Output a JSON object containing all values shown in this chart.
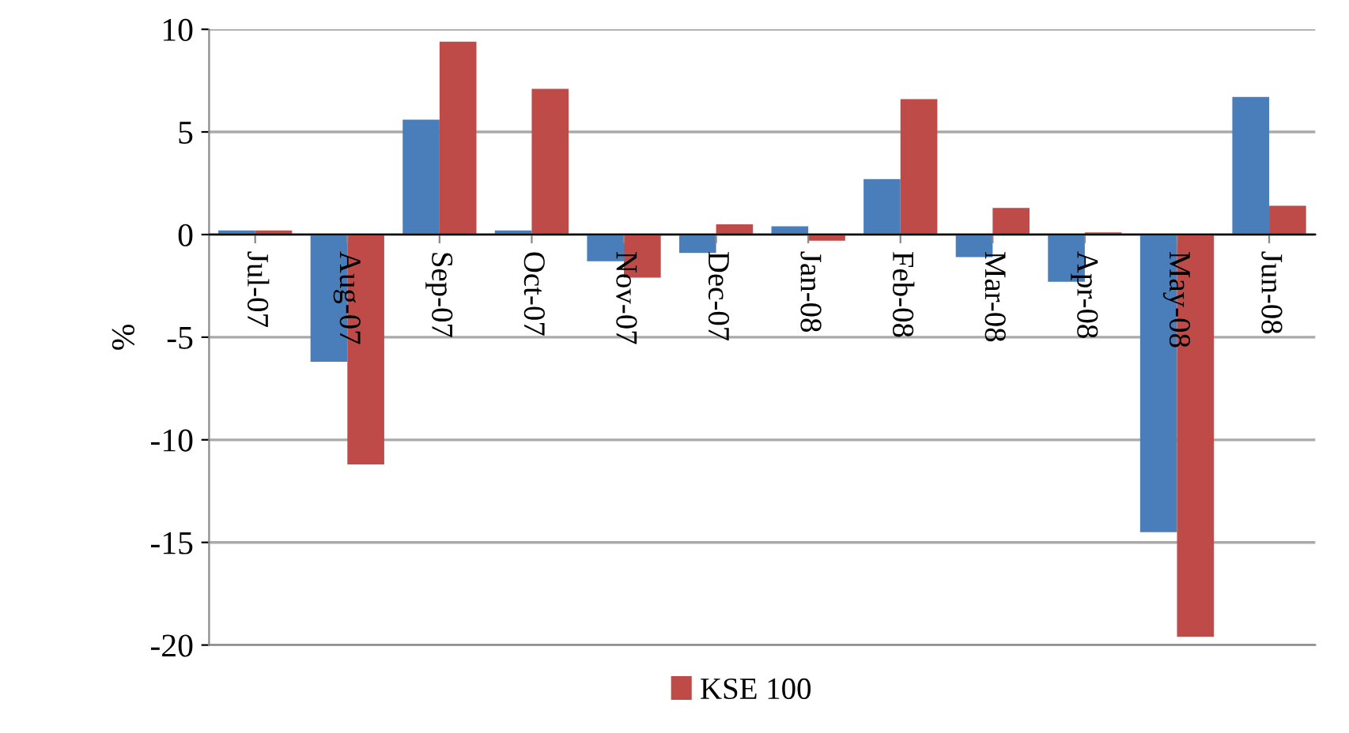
{
  "chart_data": {
    "type": "bar",
    "ylabel": "%",
    "categories": [
      "Jul-07",
      "Aug-07",
      "Sep-07",
      "Oct-07",
      "Nov-07",
      "Dec-07",
      "Jan-08",
      "Feb-08",
      "Mar-08",
      "Apr-08",
      "May-08",
      "Jun-08"
    ],
    "series": [
      {
        "color": "#4a7ebb",
        "values": [
          0.2,
          -6.2,
          5.6,
          0.2,
          -1.3,
          -0.9,
          0.4,
          2.7,
          -1.1,
          -2.3,
          -14.5,
          6.7
        ]
      },
      {
        "name": "KSE 100",
        "color": "#be4b48",
        "values": [
          0.2,
          -11.2,
          9.4,
          7.1,
          -2.1,
          0.5,
          -0.3,
          6.6,
          1.3,
          0.1,
          -19.6,
          1.4
        ]
      }
    ],
    "ylim": [
      -20,
      10
    ],
    "yticks": [
      -20,
      -15,
      -10,
      -5,
      0,
      5,
      10
    ],
    "grid": "y",
    "legend": "bottom"
  }
}
